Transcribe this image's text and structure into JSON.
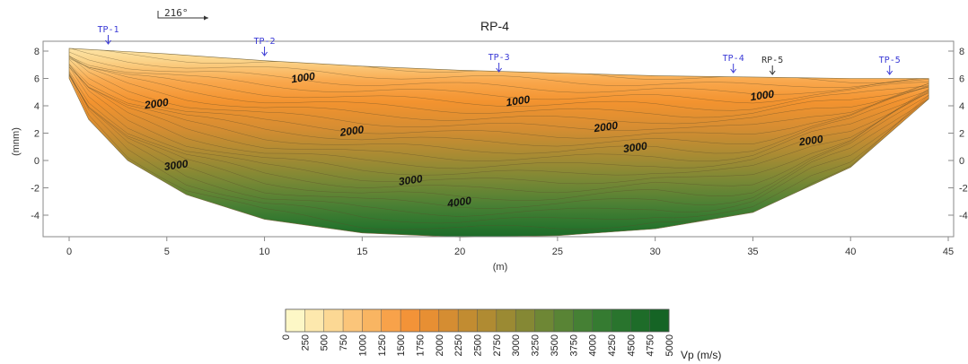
{
  "chart_data": {
    "type": "heatmap",
    "title": "RP-4",
    "bearing": "216°",
    "xlabel": "(m)",
    "ylabel": "(mnm)",
    "xlim": [
      0,
      45
    ],
    "ylim": [
      -6,
      8
    ],
    "x_ticks": [
      0,
      5,
      10,
      15,
      20,
      25,
      30,
      35,
      40,
      45
    ],
    "y_ticks": [
      8,
      6,
      4,
      2,
      0,
      -2,
      -4
    ],
    "right_y_ticks": [
      "8",
      "6",
      "4",
      "2",
      "0",
      "-2",
      "-4"
    ],
    "colorbar": {
      "label": "Vp (m/s)",
      "ticks": [
        "0",
        "250",
        "500",
        "750",
        "1000",
        "1250",
        "1500",
        "1750",
        "2000",
        "2250",
        "2500",
        "2750",
        "3000",
        "3250",
        "3500",
        "3750",
        "4000",
        "4250",
        "4500",
        "4750",
        "5000"
      ],
      "colors": [
        "#fdf7c6",
        "#fde8ad",
        "#fcd894",
        "#fbc57a",
        "#f9b562",
        "#f8a24a",
        "#f39338",
        "#e78f33",
        "#d58d32",
        "#c28c31",
        "#b08b32",
        "#9b8a33",
        "#858834",
        "#6e8735",
        "#598435",
        "#458034",
        "#357b31",
        "#29742d",
        "#1e6c29",
        "#156425"
      ]
    },
    "markers": [
      {
        "label": "TP-1",
        "x": 2,
        "color": "#3b3bd6"
      },
      {
        "label": "TP-2",
        "x": 10,
        "color": "#3b3bd6"
      },
      {
        "label": "TP-3",
        "x": 22,
        "color": "#3b3bd6"
      },
      {
        "label": "TP-4",
        "x": 34,
        "color": "#3b3bd6"
      },
      {
        "label": "RP-5",
        "x": 36,
        "color": "#333333"
      },
      {
        "label": "TP-5",
        "x": 42,
        "color": "#3b3bd6"
      }
    ],
    "contour_labels": [
      {
        "text": "1000",
        "x": 12,
        "y": 5.8
      },
      {
        "text": "2000",
        "x": 4.5,
        "y": 3.9
      },
      {
        "text": "1000",
        "x": 23,
        "y": 4.1
      },
      {
        "text": "2000",
        "x": 14.5,
        "y": 1.9
      },
      {
        "text": "2000",
        "x": 27.5,
        "y": 2.2
      },
      {
        "text": "1000",
        "x": 35.5,
        "y": 4.5
      },
      {
        "text": "2000",
        "x": 38,
        "y": 1.2
      },
      {
        "text": "3000",
        "x": 5.5,
        "y": -0.6
      },
      {
        "text": "3000",
        "x": 29,
        "y": 0.7
      },
      {
        "text": "3000",
        "x": 17.5,
        "y": -1.7
      },
      {
        "text": "4000",
        "x": 20,
        "y": -3.3
      }
    ],
    "surface_profile": [
      [
        0,
        8.2
      ],
      [
        5,
        7.8
      ],
      [
        10,
        7.3
      ],
      [
        15,
        6.9
      ],
      [
        20,
        6.6
      ],
      [
        25,
        6.4
      ],
      [
        30,
        6.2
      ],
      [
        35,
        6.1
      ],
      [
        40,
        6.0
      ],
      [
        44,
        6.0
      ]
    ],
    "bottom_profile": [
      [
        0,
        6.0
      ],
      [
        1,
        3.0
      ],
      [
        3,
        0.0
      ],
      [
        6,
        -2.5
      ],
      [
        10,
        -4.3
      ],
      [
        15,
        -5.3
      ],
      [
        20,
        -5.6
      ],
      [
        25,
        -5.5
      ],
      [
        30,
        -5.0
      ],
      [
        35,
        -3.8
      ],
      [
        40,
        -0.5
      ],
      [
        44,
        4.5
      ],
      [
        44,
        6.0
      ]
    ]
  }
}
